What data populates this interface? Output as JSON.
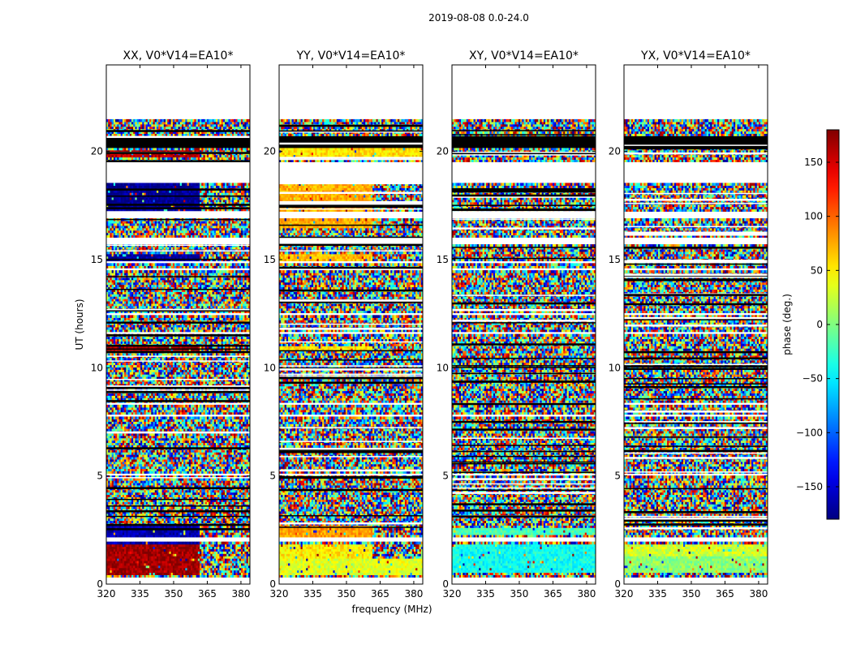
{
  "suptitle": "2019-08-08 0.0-24.0",
  "ylabel": "UT (hours)",
  "xlabel": "frequency (MHz)",
  "colorbar": {
    "label": "phase (deg.)",
    "ticks": [
      150,
      100,
      50,
      0,
      -50,
      -100,
      -150
    ],
    "tick_labels": [
      "150",
      "100",
      "50",
      "0",
      "−50",
      "−100",
      "−150"
    ],
    "vmin": -180,
    "vmax": 180,
    "colormap": "jet"
  },
  "chart_data": {
    "type": "heatmap",
    "xlim": [
      320,
      384
    ],
    "ylim": [
      0,
      24
    ],
    "x_ticks": [
      320,
      335,
      350,
      365,
      380
    ],
    "y_ticks": [
      0,
      5,
      10,
      15,
      20
    ],
    "panels": [
      {
        "title": "XX, V0*V14=EA10*",
        "coherent_segments": [
          {
            "t0": 0.4,
            "t1": 1.9,
            "f0": 320,
            "f1": 362,
            "phase": 170
          },
          {
            "t0": 1.9,
            "t1": 2.7,
            "f0": 320,
            "f1": 362,
            "phase": -165
          },
          {
            "t0": 19.7,
            "t1": 20.1,
            "f0": 320,
            "f1": 362,
            "phase": 160
          },
          {
            "t0": 17.2,
            "t1": 18.5,
            "f0": 320,
            "f1": 362,
            "phase": -175
          },
          {
            "t0": 15.0,
            "t1": 15.3,
            "f0": 320,
            "f1": 362,
            "phase": -170
          },
          {
            "t0": 10.8,
            "t1": 11.0,
            "f0": 320,
            "f1": 362,
            "phase": 165
          }
        ]
      },
      {
        "title": "YY, V0*V14=EA10*",
        "coherent_segments": [
          {
            "t0": 0.4,
            "t1": 1.2,
            "f0": 320,
            "f1": 384,
            "phase": 35
          },
          {
            "t0": 1.2,
            "t1": 1.9,
            "f0": 320,
            "f1": 362,
            "phase": 50
          },
          {
            "t0": 2.2,
            "t1": 2.7,
            "f0": 320,
            "f1": 362,
            "phase": 80
          },
          {
            "t0": 19.7,
            "t1": 20.2,
            "f0": 320,
            "f1": 384,
            "phase": 55
          },
          {
            "t0": 16.5,
            "t1": 18.5,
            "f0": 320,
            "f1": 362,
            "phase": 75
          },
          {
            "t0": 15.0,
            "t1": 15.3,
            "f0": 320,
            "f1": 362,
            "phase": 70
          },
          {
            "t0": 10.8,
            "t1": 11.0,
            "f0": 320,
            "f1": 362,
            "phase": 55
          }
        ]
      },
      {
        "title": "XY, V0*V14=EA10*",
        "coherent_segments": [
          {
            "t0": 0.6,
            "t1": 1.9,
            "f0": 320,
            "f1": 384,
            "phase": -40
          },
          {
            "t0": 2.3,
            "t1": 2.6,
            "f0": 320,
            "f1": 384,
            "phase": -20
          }
        ]
      },
      {
        "title": "YX, V0*V14=EA10*",
        "coherent_segments": [
          {
            "t0": 0.6,
            "t1": 1.3,
            "f0": 320,
            "f1": 384,
            "phase": 5
          },
          {
            "t0": 1.3,
            "t1": 1.9,
            "f0": 320,
            "f1": 384,
            "phase": 30
          }
        ]
      }
    ],
    "blank_intervals_hours": [
      [
        0,
        0.35
      ],
      [
        1.95,
        2.15
      ],
      [
        4.75,
        4.85
      ],
      [
        5.05,
        5.15
      ],
      [
        7.75,
        7.85
      ],
      [
        8.25,
        8.35
      ],
      [
        11.55,
        11.7
      ],
      [
        12.4,
        12.55
      ],
      [
        14.55,
        14.65
      ],
      [
        14.85,
        14.95
      ],
      [
        15.75,
        16.0
      ],
      [
        16.95,
        17.2
      ],
      [
        18.6,
        19.55
      ],
      [
        21.45,
        24
      ]
    ],
    "dark_bands_hours": [
      [
        20.15,
        20.45
      ],
      [
        20.45,
        20.75
      ]
    ]
  }
}
